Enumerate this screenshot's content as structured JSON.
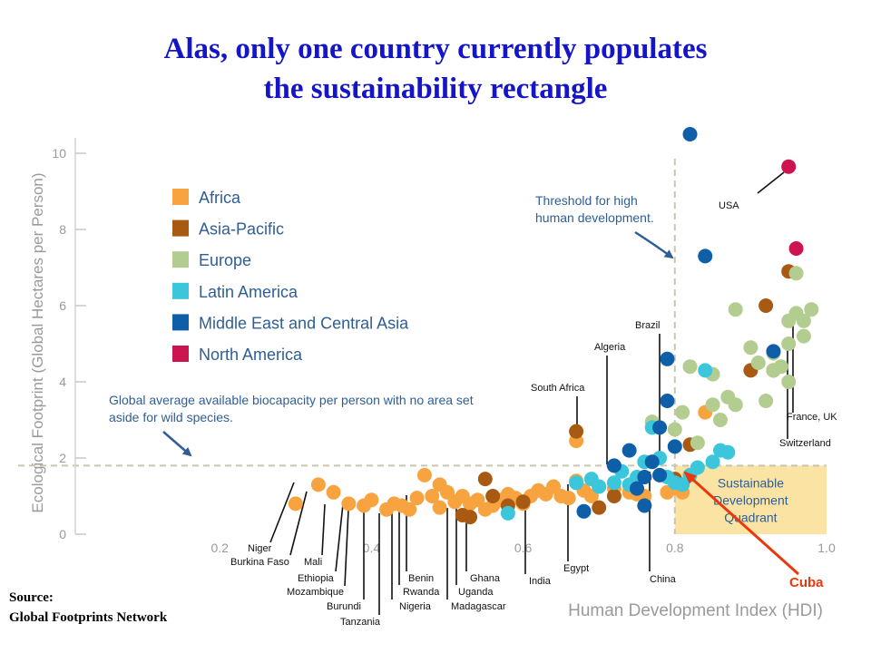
{
  "slide": {
    "title_line1": "Alas, only one country currently populates",
    "title_line2": "the sustainability rectangle",
    "source_label": "Source:",
    "source_name": "Global Footprints Network"
  },
  "colors": {
    "Africa": "#f7a440",
    "Asia-Pacific": "#a85a12",
    "Europe": "#b3cc90",
    "Latin America": "#3cc6dc",
    "Middle East and Central Asia": "#0e5ea8",
    "North America": "#cc1550",
    "grid_dash": "#c9c5b2",
    "axis_text": "#9a9a9a",
    "quadrant_fill": "#fbe3a3",
    "annotation_text": "#2e5e96",
    "cuba_arrow": "#e8380c",
    "title": "#1414c8"
  },
  "chart_data": {
    "type": "scatter",
    "xlabel": "Human Development Index (HDI)",
    "ylabel": "Ecological Footprint (Global Hectares per Person)",
    "xlim": [
      0,
      1.0
    ],
    "ylim": [
      0,
      10.5
    ],
    "x_ticks": [
      "0.2",
      "0.4",
      "0.6",
      "0.8",
      "1.0"
    ],
    "y_ticks": [
      "0",
      "2",
      "4",
      "6",
      "8",
      "10"
    ],
    "legend_position": "top-left",
    "legend": [
      "Africa",
      "Asia-Pacific",
      "Europe",
      "Latin America",
      "Middle East and Central Asia",
      "North America"
    ],
    "threshold_hdi": 0.8,
    "biocapacity_line": 1.8,
    "threshold_note": [
      "Threshold for high",
      "human development."
    ],
    "biocapacity_note": [
      "Global average available biocapacity per person with no area set",
      "aside for wild species."
    ],
    "quadrant_label": [
      "Sustainable",
      "Development",
      "Quadrant"
    ],
    "series": [
      {
        "name": "Africa",
        "points": [
          [
            0.3,
            0.8
          ],
          [
            0.33,
            1.3
          ],
          [
            0.35,
            1.1
          ],
          [
            0.37,
            0.8
          ],
          [
            0.39,
            0.75
          ],
          [
            0.4,
            0.9
          ],
          [
            0.42,
            0.65
          ],
          [
            0.43,
            0.8
          ],
          [
            0.44,
            0.75
          ],
          [
            0.45,
            0.65
          ],
          [
            0.46,
            0.95
          ],
          [
            0.48,
            1.0
          ],
          [
            0.49,
            0.7
          ],
          [
            0.5,
            1.1
          ],
          [
            0.51,
            0.85
          ],
          [
            0.52,
            1.0
          ],
          [
            0.53,
            0.8
          ],
          [
            0.54,
            0.9
          ],
          [
            0.55,
            0.65
          ],
          [
            0.56,
            0.75
          ],
          [
            0.57,
            0.9
          ],
          [
            0.58,
            1.05
          ],
          [
            0.59,
            0.95
          ],
          [
            0.6,
            0.8
          ],
          [
            0.61,
            1.0
          ],
          [
            0.62,
            1.15
          ],
          [
            0.63,
            1.05
          ],
          [
            0.64,
            1.25
          ],
          [
            0.65,
            1.0
          ],
          [
            0.66,
            0.95
          ],
          [
            0.67,
            1.4
          ],
          [
            0.68,
            1.15
          ],
          [
            0.69,
            1.0
          ],
          [
            0.7,
            1.25
          ],
          [
            0.72,
            1.2
          ],
          [
            0.74,
            1.1
          ],
          [
            0.75,
            1.05
          ],
          [
            0.76,
            1.0
          ],
          [
            0.79,
            1.1
          ],
          [
            0.8,
            1.2
          ],
          [
            0.81,
            1.1
          ],
          [
            0.47,
            1.55
          ],
          [
            0.49,
            1.3
          ],
          [
            0.67,
            2.45
          ],
          [
            0.84,
            3.2
          ]
        ]
      },
      {
        "name": "Asia-Pacific",
        "points": [
          [
            0.52,
            0.5
          ],
          [
            0.53,
            0.45
          ],
          [
            0.55,
            1.45
          ],
          [
            0.56,
            1.0
          ],
          [
            0.58,
            0.75
          ],
          [
            0.6,
            0.85
          ],
          [
            0.67,
            2.7
          ],
          [
            0.7,
            0.7
          ],
          [
            0.72,
            1.0
          ],
          [
            0.8,
            1.45
          ],
          [
            0.82,
            2.35
          ],
          [
            0.9,
            4.3
          ],
          [
            0.95,
            6.9
          ],
          [
            0.92,
            6.0
          ],
          [
            0.93,
            4.3
          ]
        ]
      },
      {
        "name": "Europe",
        "points": [
          [
            0.77,
            2.95
          ],
          [
            0.8,
            2.75
          ],
          [
            0.81,
            3.2
          ],
          [
            0.82,
            4.4
          ],
          [
            0.83,
            2.4
          ],
          [
            0.85,
            3.4
          ],
          [
            0.85,
            4.2
          ],
          [
            0.86,
            3.0
          ],
          [
            0.87,
            3.6
          ],
          [
            0.88,
            5.9
          ],
          [
            0.88,
            3.4
          ],
          [
            0.9,
            4.9
          ],
          [
            0.91,
            4.5
          ],
          [
            0.92,
            3.5
          ],
          [
            0.93,
            4.3
          ],
          [
            0.93,
            4.75
          ],
          [
            0.94,
            4.4
          ],
          [
            0.95,
            5.0
          ],
          [
            0.95,
            5.6
          ],
          [
            0.96,
            5.8
          ],
          [
            0.96,
            6.85
          ],
          [
            0.97,
            5.2
          ],
          [
            0.97,
            5.6
          ],
          [
            0.98,
            5.9
          ],
          [
            0.95,
            4.0
          ],
          [
            0.88,
            3.4
          ]
        ]
      },
      {
        "name": "Latin America",
        "points": [
          [
            0.58,
            0.55
          ],
          [
            0.67,
            1.35
          ],
          [
            0.69,
            1.45
          ],
          [
            0.7,
            1.25
          ],
          [
            0.72,
            1.35
          ],
          [
            0.73,
            1.65
          ],
          [
            0.74,
            1.3
          ],
          [
            0.75,
            1.5
          ],
          [
            0.76,
            1.9
          ],
          [
            0.77,
            2.8
          ],
          [
            0.78,
            2.0
          ],
          [
            0.79,
            1.5
          ],
          [
            0.8,
            1.35
          ],
          [
            0.81,
            1.3
          ],
          [
            0.82,
            1.55
          ],
          [
            0.83,
            1.75
          ],
          [
            0.84,
            4.3
          ],
          [
            0.85,
            1.9
          ],
          [
            0.86,
            2.2
          ],
          [
            0.87,
            2.15
          ]
        ]
      },
      {
        "name": "Middle East and Central Asia",
        "points": [
          [
            0.68,
            0.6
          ],
          [
            0.72,
            1.8
          ],
          [
            0.74,
            2.2
          ],
          [
            0.75,
            1.2
          ],
          [
            0.76,
            1.5
          ],
          [
            0.77,
            1.9
          ],
          [
            0.78,
            2.8
          ],
          [
            0.79,
            3.5
          ],
          [
            0.79,
            4.6
          ],
          [
            0.8,
            2.3
          ],
          [
            0.82,
            10.5
          ],
          [
            0.84,
            7.3
          ],
          [
            0.93,
            4.8
          ],
          [
            0.78,
            1.55
          ],
          [
            0.76,
            0.75
          ]
        ]
      },
      {
        "name": "North America",
        "points": [
          [
            0.95,
            9.65
          ],
          [
            0.96,
            7.5
          ]
        ]
      }
    ],
    "country_labels": [
      "USA",
      "Brazil",
      "Algeria",
      "South Africa",
      "France, UK",
      "Switzerland",
      "Niger",
      "Burkina Faso",
      "Mali",
      "Ethiopia",
      "Mozambique",
      "Burundi",
      "Tanzania",
      "Benin",
      "Rwanda",
      "Nigeria",
      "Ghana",
      "Uganda",
      "Madagascar",
      "India",
      "Egypt",
      "China"
    ],
    "highlight_label": "Cuba"
  }
}
